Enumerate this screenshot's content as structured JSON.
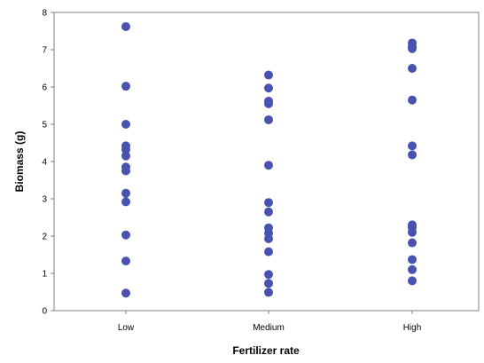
{
  "chart_data": {
    "type": "scatter",
    "title": "",
    "xlabel": "Fertilizer rate",
    "ylabel": "Biomass (g)",
    "categories": [
      "Low",
      "Medium",
      "High"
    ],
    "ylim": [
      0,
      8
    ],
    "yticks": [
      "0",
      "1",
      "2",
      "3",
      "4",
      "5",
      "6",
      "7",
      "8"
    ],
    "grid": false,
    "legend": "none",
    "marker_color": "#4a52b0",
    "series": [
      {
        "values": [
          [
            7.62,
            6.02,
            5.0,
            4.42,
            4.32,
            4.15,
            3.85,
            3.75,
            3.15,
            2.92,
            2.03,
            1.33,
            0.47
          ],
          [
            6.32,
            5.97,
            5.62,
            5.55,
            5.12,
            3.9,
            2.9,
            2.65,
            2.22,
            2.08,
            1.93,
            1.58,
            0.97,
            0.73,
            0.49
          ],
          [
            7.18,
            7.08,
            7.03,
            6.5,
            5.65,
            4.42,
            4.18,
            2.3,
            2.23,
            2.1,
            1.82,
            1.37,
            1.1,
            0.8
          ]
        ]
      }
    ]
  }
}
